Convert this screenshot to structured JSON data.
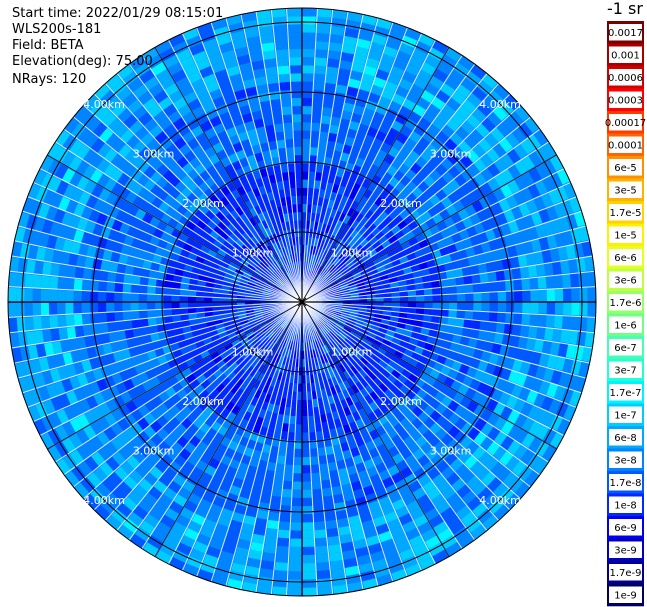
{
  "header": {
    "start_time": "Start time: 2022/01/29 08:15:01",
    "instrument": "WLS200s-181",
    "field": "Field: BETA",
    "elevation": "Elevation(deg): 75.00",
    "nrays": "NRays: 120"
  },
  "colorbar": {
    "unit_label": "-1 sr",
    "bins": [
      {
        "label": "0.0017",
        "color": "#7a0000"
      },
      {
        "label": "0.001",
        "color": "#a80000"
      },
      {
        "label": "0.0006",
        "color": "#d40000"
      },
      {
        "label": "0.0003",
        "color": "#ff0000"
      },
      {
        "label": "0.00017",
        "color": "#ff3c00"
      },
      {
        "label": "0.0001",
        "color": "#ff6400"
      },
      {
        "label": "6e-5",
        "color": "#ff9000"
      },
      {
        "label": "3e-5",
        "color": "#ffb000"
      },
      {
        "label": "1.7e-5",
        "color": "#ffd200"
      },
      {
        "label": "1e-5",
        "color": "#fff000"
      },
      {
        "label": "6e-6",
        "color": "#e6ff1e"
      },
      {
        "label": "3e-6",
        "color": "#c0ff40"
      },
      {
        "label": "1.7e-6",
        "color": "#96ff69"
      },
      {
        "label": "1e-6",
        "color": "#6cff8c"
      },
      {
        "label": "6e-7",
        "color": "#46ffb0"
      },
      {
        "label": "3e-7",
        "color": "#22ffd6"
      },
      {
        "label": "1.7e-7",
        "color": "#00f4ff"
      },
      {
        "label": "1e-7",
        "color": "#00ccff"
      },
      {
        "label": "6e-8",
        "color": "#00a8ff"
      },
      {
        "label": "3e-8",
        "color": "#0084ff"
      },
      {
        "label": "1.7e-8",
        "color": "#0058ff"
      },
      {
        "label": "1e-8",
        "color": "#0028ff"
      },
      {
        "label": "6e-9",
        "color": "#0000f0"
      },
      {
        "label": "3e-9",
        "color": "#0000c0"
      },
      {
        "label": "1.7e-9",
        "color": "#000090"
      },
      {
        "label": "1e-9",
        "color": "#000060"
      }
    ]
  },
  "chart_data": {
    "type": "heatmap",
    "projection": "polar (PPI)",
    "field": "BETA",
    "elevation_deg": 75.0,
    "n_rays": 120,
    "range_rings_km": [
      1.0,
      2.0,
      3.0,
      4.0
    ],
    "range_ring_labels": [
      "1.00km",
      "2.00km",
      "3.00km",
      "4.00km"
    ],
    "max_range_km": 4.0,
    "value_scale": "log",
    "value_range": [
      1e-09,
      0.0017
    ],
    "dominant_values": "approximately 1e-8 to 6e-8 across the domain; lower near the centre (1e-9 to 1e-8) and higher near the outer edge (up to about 1e-7)",
    "grid": true
  }
}
